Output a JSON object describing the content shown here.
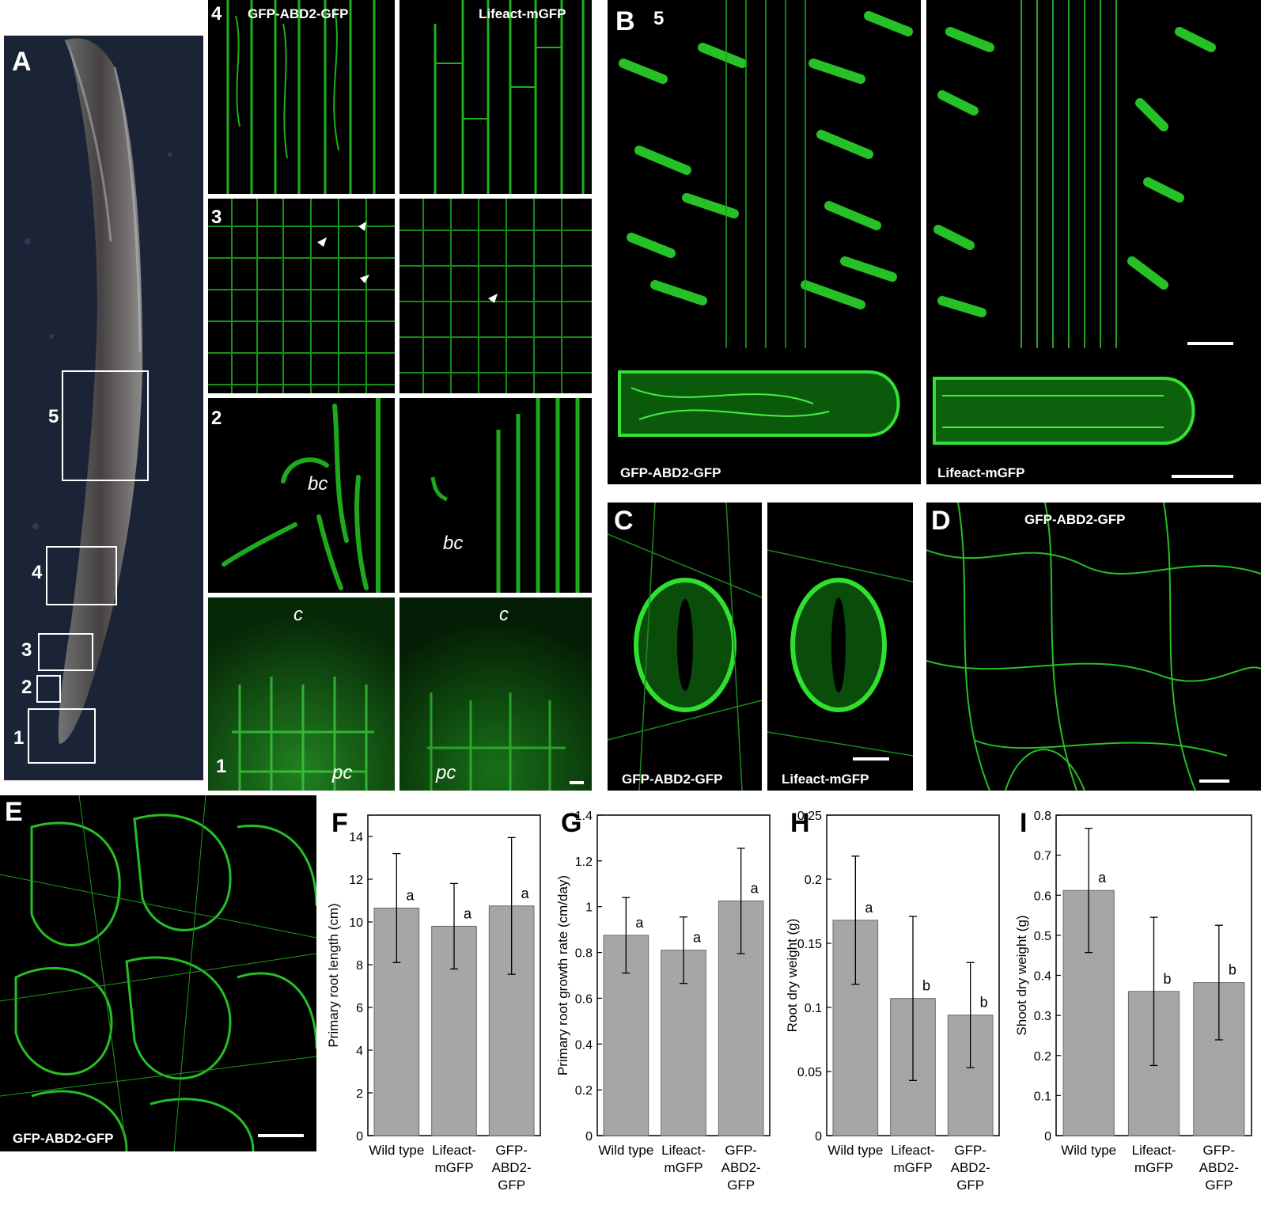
{
  "panels": {
    "A": {
      "letter": "A",
      "regions": [
        "5",
        "4",
        "3",
        "2",
        "1"
      ]
    },
    "row4": {
      "num": "4",
      "left_label": "GFP-ABD2-GFP",
      "right_label": "Lifeact-mGFP"
    },
    "row3": {
      "num": "3"
    },
    "row2": {
      "num": "2",
      "left_tag": "bc",
      "right_tag": "bc"
    },
    "row1": {
      "num": "1",
      "left_top_tag": "c",
      "left_bottom_tag": "pc",
      "right_top_tag": "c",
      "right_bottom_tag": "pc"
    },
    "B": {
      "letter": "B",
      "num": "5",
      "left_label": "GFP-ABD2-GFP",
      "right_label": "Lifeact-mGFP"
    },
    "C": {
      "letter": "C",
      "left_label": "GFP-ABD2-GFP",
      "right_label": "Lifeact-mGFP"
    },
    "D": {
      "letter": "D",
      "label": "GFP-ABD2-GFP"
    },
    "E": {
      "letter": "E",
      "label": "GFP-ABD2-GFP"
    }
  },
  "chart_data": [
    {
      "panel": "F",
      "type": "bar",
      "ylabel": "Primary root length (cm)",
      "categories": [
        "Wild type",
        "Lifeact-mGFP",
        "GFP-ABD2-GFP"
      ],
      "category_lines": [
        [
          "Wild type"
        ],
        [
          "Lifeact-",
          "mGFP"
        ],
        [
          "GFP-",
          "ABD2-",
          "GFP"
        ]
      ],
      "values": [
        10.65,
        9.8,
        10.75
      ],
      "errors": [
        2.55,
        2.0,
        3.2
      ],
      "letters": [
        "a",
        "a",
        "a"
      ],
      "ylim": [
        0,
        15
      ],
      "yticks": [
        0,
        2,
        4,
        6,
        8,
        10,
        12,
        14
      ],
      "ytick_labels": [
        "0",
        "2",
        "4",
        "6",
        "8",
        "10",
        "12",
        "14"
      ]
    },
    {
      "panel": "G",
      "type": "bar",
      "ylabel": "Primary root growth rate (cm/day)",
      "categories": [
        "Wild type",
        "Lifeact-mGFP",
        "GFP-ABD2-GFP"
      ],
      "category_lines": [
        [
          "Wild type"
        ],
        [
          "Lifeact-",
          "mGFP"
        ],
        [
          "GFP-",
          "ABD2-",
          "GFP"
        ]
      ],
      "values": [
        0.875,
        0.81,
        1.025
      ],
      "errors": [
        0.165,
        0.145,
        0.23
      ],
      "letters": [
        "a",
        "a",
        "a"
      ],
      "ylim": [
        0,
        1.4
      ],
      "yticks": [
        0,
        0.2,
        0.4,
        0.6,
        0.8,
        1.0,
        1.2,
        1.4
      ],
      "ytick_labels": [
        "0",
        "0.2",
        "0.4",
        "0.6",
        "0.8",
        "1",
        "1.2",
        "1.4"
      ]
    },
    {
      "panel": "H",
      "type": "bar",
      "ylabel": "Root dry weight (g)",
      "categories": [
        "Wild type",
        "Lifeact-mGFP",
        "GFP-ABD2-GFP"
      ],
      "category_lines": [
        [
          "Wild type"
        ],
        [
          "Lifeact-",
          "mGFP"
        ],
        [
          "GFP-",
          "ABD2-",
          "GFP"
        ]
      ],
      "values": [
        0.168,
        0.107,
        0.094
      ],
      "errors": [
        0.05,
        0.064,
        0.041
      ],
      "letters": [
        "a",
        "b",
        "b"
      ],
      "ylim": [
        0,
        0.25
      ],
      "yticks": [
        0,
        0.05,
        0.1,
        0.15,
        0.2,
        0.25
      ],
      "ytick_labels": [
        "0",
        "0.05",
        "0.1",
        "0.15",
        "0.2",
        "0.25"
      ]
    },
    {
      "panel": "I",
      "type": "bar",
      "ylabel": "Shoot dry weight (g)",
      "categories": [
        "Wild type",
        "Lifeact-mGFP",
        "GFP-ABD2-GFP"
      ],
      "category_lines": [
        [
          "Wild type"
        ],
        [
          "Lifeact-",
          "mGFP"
        ],
        [
          "GFP-",
          "ABD2-",
          "GFP"
        ]
      ],
      "values": [
        0.612,
        0.36,
        0.382
      ],
      "errors": [
        0.155,
        0.185,
        0.143
      ],
      "letters": [
        "a",
        "b",
        "b"
      ],
      "ylim": [
        0,
        0.8
      ],
      "yticks": [
        0,
        0.1,
        0.2,
        0.3,
        0.4,
        0.5,
        0.6,
        0.7,
        0.8
      ],
      "ytick_labels": [
        "0",
        "0.1",
        "0.2",
        "0.3",
        "0.4",
        "0.5",
        "0.6",
        "0.7",
        "0.8"
      ]
    }
  ]
}
